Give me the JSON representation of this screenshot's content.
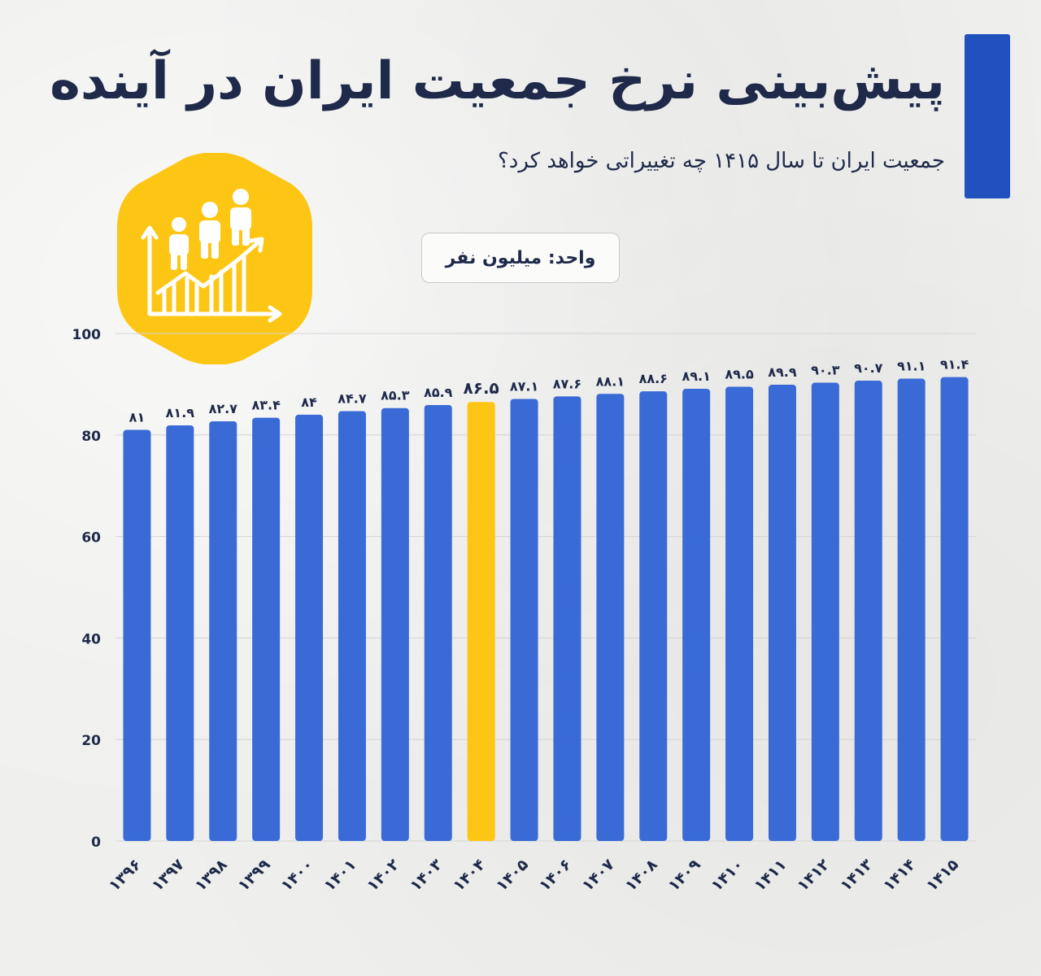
{
  "header": {
    "title": "پیش‌بینی نرخ جمعیت ایران در آینده",
    "subtitle": "جمعیت ایران تا سال ۱۴۱۵ چه تغییراتی خواهد کرد؟",
    "unit_label": "واحد: میلیون نفر"
  },
  "icons": {
    "badge": "population-growth-chart-icon"
  },
  "colors": {
    "bar": "#3a6ad6",
    "highlight": "#fdc614",
    "accent": "#2150bf",
    "badge": "#fdc614",
    "text": "#1f2a4a",
    "grid": "#d4d4d4"
  },
  "chart_data": {
    "type": "bar",
    "title": "پیش‌بینی نرخ جمعیت ایران در آینده",
    "xlabel": "",
    "ylabel": "",
    "ylim": [
      0,
      100
    ],
    "yticks": [
      0,
      20,
      40,
      60,
      80,
      100
    ],
    "ytick_labels": [
      "0",
      "20",
      "40",
      "60",
      "80",
      "100"
    ],
    "grid": true,
    "highlight_index": 8,
    "categories": [
      "۱۳۹۶",
      "۱۳۹۷",
      "۱۳۹۸",
      "۱۳۹۹",
      "۱۴۰۰",
      "۱۴۰۱",
      "۱۴۰۲",
      "۱۴۰۳",
      "۱۴۰۴",
      "۱۴۰۵",
      "۱۴۰۶",
      "۱۴۰۷",
      "۱۴۰۸",
      "۱۴۰۹",
      "۱۴۱۰",
      "۱۴۱۱",
      "۱۴۱۲",
      "۱۴۱۳",
      "۱۴۱۴",
      "۱۴۱۵"
    ],
    "values": [
      81,
      81.9,
      82.7,
      83.4,
      84,
      84.7,
      85.3,
      85.9,
      86.5,
      87.1,
      87.6,
      88.1,
      88.6,
      89.1,
      89.5,
      89.9,
      90.3,
      90.7,
      91.1,
      91.4
    ],
    "value_labels": [
      "۸۱",
      "۸۱.۹",
      "۸۲.۷",
      "۸۳.۴",
      "۸۴",
      "۸۴.۷",
      "۸۵.۳",
      "۸۵.۹",
      "۸۶.۵",
      "۸۷.۱",
      "۸۷.۶",
      "۸۸.۱",
      "۸۸.۶",
      "۸۹.۱",
      "۸۹.۵",
      "۸۹.۹",
      "۹۰.۳",
      "۹۰.۷",
      "۹۱.۱",
      "۹۱.۴"
    ]
  }
}
